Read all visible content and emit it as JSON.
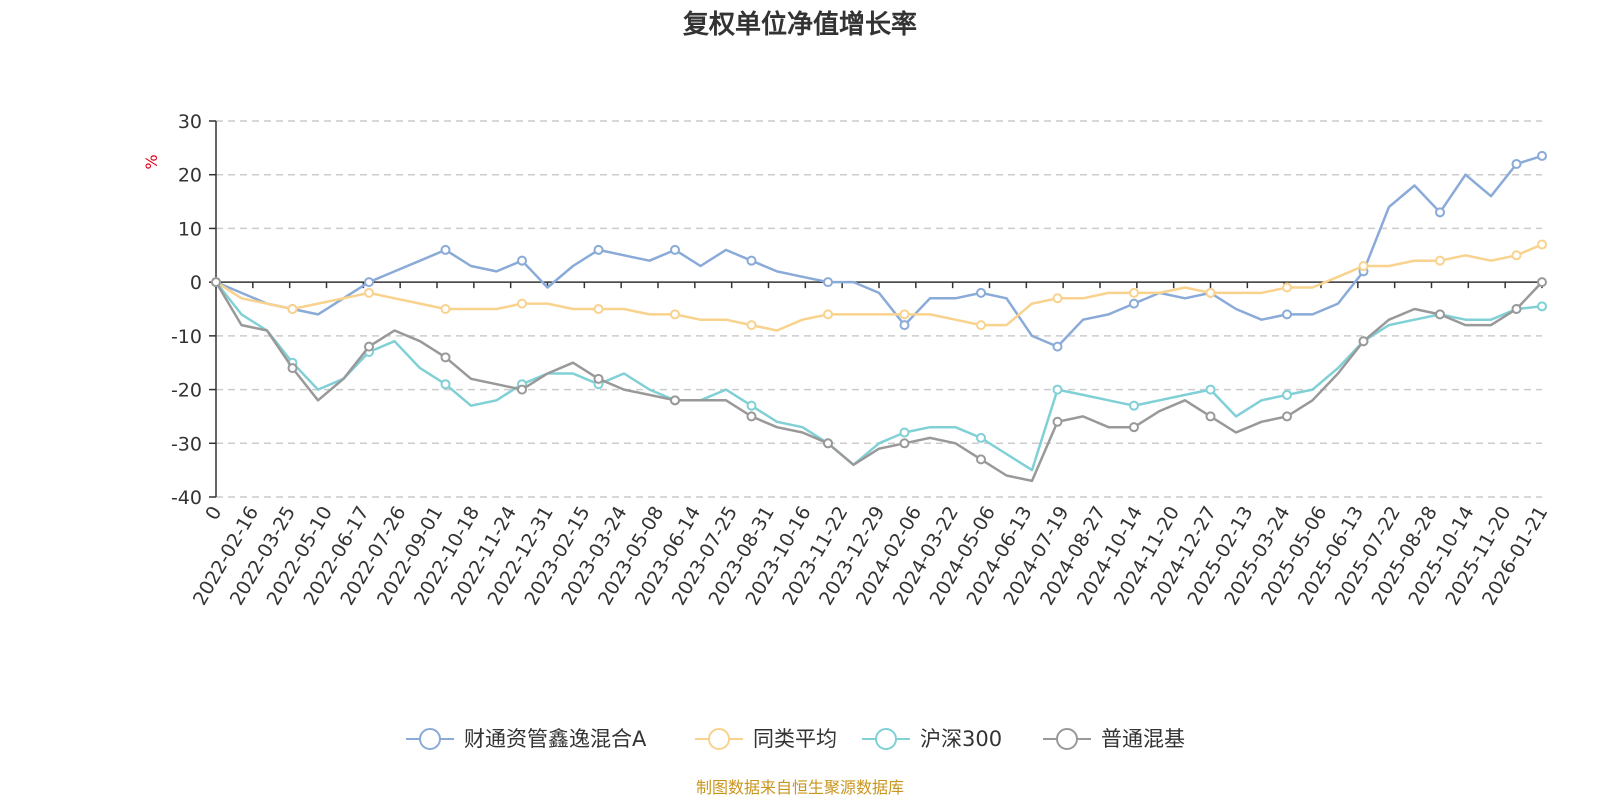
{
  "chart_data": {
    "type": "line",
    "title": "复权单位净值增长率",
    "ylabel": "%",
    "ylim": [
      -40,
      30
    ],
    "yticks": [
      30,
      20,
      10,
      0,
      -10,
      -20,
      -30,
      -40
    ],
    "grid": true,
    "legend_position": "bottom-center",
    "x_tick_labels": [
      "0",
      "2022-02-16",
      "2022-03-25",
      "2022-05-10",
      "2022-06-17",
      "2022-07-26",
      "2022-09-01",
      "2022-10-18",
      "2022-11-24",
      "2022-12-31",
      "2023-02-15",
      "2023-03-24",
      "2023-05-08",
      "2023-06-14",
      "2023-07-25",
      "2023-08-31",
      "2023-10-16",
      "2023-11-22",
      "2023-12-29",
      "2024-02-06",
      "2024-03-22",
      "2024-05-06",
      "2024-06-13",
      "2024-07-19",
      "2024-08-27",
      "2024-10-14",
      "2024-11-20",
      "2024-12-27",
      "2025-02-13",
      "2025-03-24",
      "2025-05-06",
      "2025-06-13",
      "2025-07-22",
      "2025-08-28",
      "2025-10-14",
      "2025-11-20",
      "2026-01-21"
    ],
    "series": [
      {
        "name": "财通资管鑫逸混合A",
        "color": "#8aaad8",
        "values": [
          0,
          -2,
          -4,
          -5,
          -6,
          -3,
          0,
          2,
          4,
          6,
          3,
          2,
          4,
          -1,
          3,
          6,
          5,
          4,
          6,
          3,
          6,
          4,
          2,
          1,
          0,
          0,
          -2,
          -8,
          -3,
          -3,
          -2,
          -3,
          -10,
          -12,
          -7,
          -6,
          -4,
          -2,
          -3,
          -2,
          -5,
          -7,
          -6,
          -6,
          -4,
          2,
          14,
          18,
          13,
          20,
          16,
          22,
          23.5
        ]
      },
      {
        "name": "同类平均",
        "color": "#f9d28e",
        "values": [
          0,
          -3,
          -4,
          -5,
          -4,
          -3,
          -2,
          -3,
          -4,
          -5,
          -5,
          -5,
          -4,
          -4,
          -5,
          -5,
          -5,
          -6,
          -6,
          -7,
          -7,
          -8,
          -9,
          -7,
          -6,
          -6,
          -6,
          -6,
          -6,
          -7,
          -8,
          -8,
          -4,
          -3,
          -3,
          -2,
          -2,
          -2,
          -1,
          -2,
          -2,
          -2,
          -1,
          -1,
          1,
          3,
          3,
          4,
          4,
          5,
          4,
          5,
          7
        ]
      },
      {
        "name": "沪深300",
        "color": "#80d0d6",
        "values": [
          0,
          -6,
          -9,
          -15,
          -20,
          -18,
          -13,
          -11,
          -16,
          -19,
          -23,
          -22,
          -19,
          -17,
          -17,
          -19,
          -17,
          -20,
          -22,
          -22,
          -20,
          -23,
          -26,
          -27,
          -30,
          -34,
          -30,
          -28,
          -27,
          -27,
          -29,
          -32,
          -35,
          -20,
          -21,
          -22,
          -23,
          -22,
          -21,
          -20,
          -25,
          -22,
          -21,
          -20,
          -16,
          -11,
          -8,
          -7,
          -6,
          -7,
          -7,
          -5,
          -4.5
        ]
      },
      {
        "name": "普通混基",
        "color": "#999999",
        "values": [
          0,
          -8,
          -9,
          -16,
          -22,
          -18,
          -12,
          -9,
          -11,
          -14,
          -18,
          -19,
          -20,
          -17,
          -15,
          -18,
          -20,
          -21,
          -22,
          -22,
          -22,
          -25,
          -27,
          -28,
          -30,
          -34,
          -31,
          -30,
          -29,
          -30,
          -33,
          -36,
          -37,
          -26,
          -25,
          -27,
          -27,
          -24,
          -22,
          -25,
          -28,
          -26,
          -25,
          -22,
          -17,
          -11,
          -7,
          -5,
          -6,
          -8,
          -8,
          -5,
          0
        ]
      }
    ]
  },
  "source_note": "制图数据来自恒生聚源数据库"
}
